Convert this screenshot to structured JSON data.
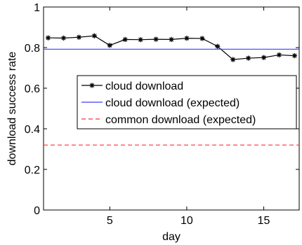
{
  "chart_data": {
    "type": "line",
    "xlabel": "day",
    "ylabel": "download success rate",
    "xlim": [
      0.7,
      17.3
    ],
    "ylim": [
      0,
      1
    ],
    "x_ticks": [
      5,
      10,
      15
    ],
    "x_tick_labels": [
      "5",
      "10",
      "15"
    ],
    "y_ticks": [
      0,
      0.2,
      0.4,
      0.6,
      0.8,
      1
    ],
    "y_tick_labels": [
      "0",
      "0.2",
      "0.4",
      "0.6",
      "0.8",
      "1"
    ],
    "grid": false,
    "legend_position": "center-right",
    "series": [
      {
        "name": "cloud download",
        "style": "line-star",
        "color": "#000000",
        "x": [
          1,
          2,
          3,
          4,
          5,
          6,
          7,
          8,
          9,
          10,
          11,
          12,
          13,
          14,
          15,
          16,
          17
        ],
        "y": [
          0.848,
          0.847,
          0.851,
          0.858,
          0.811,
          0.84,
          0.839,
          0.841,
          0.84,
          0.846,
          0.845,
          0.806,
          0.741,
          0.748,
          0.751,
          0.764,
          0.76
        ]
      },
      {
        "name": "cloud download (expected)",
        "style": "solid",
        "color": "#3c3cff",
        "x": [
          0.7,
          17.3
        ],
        "y": [
          0.792,
          0.792
        ]
      },
      {
        "name": "common download (expected)",
        "style": "dashed",
        "color": "#ff3333",
        "x": [
          0.7,
          17.3
        ],
        "y": [
          0.32,
          0.32
        ]
      }
    ]
  }
}
